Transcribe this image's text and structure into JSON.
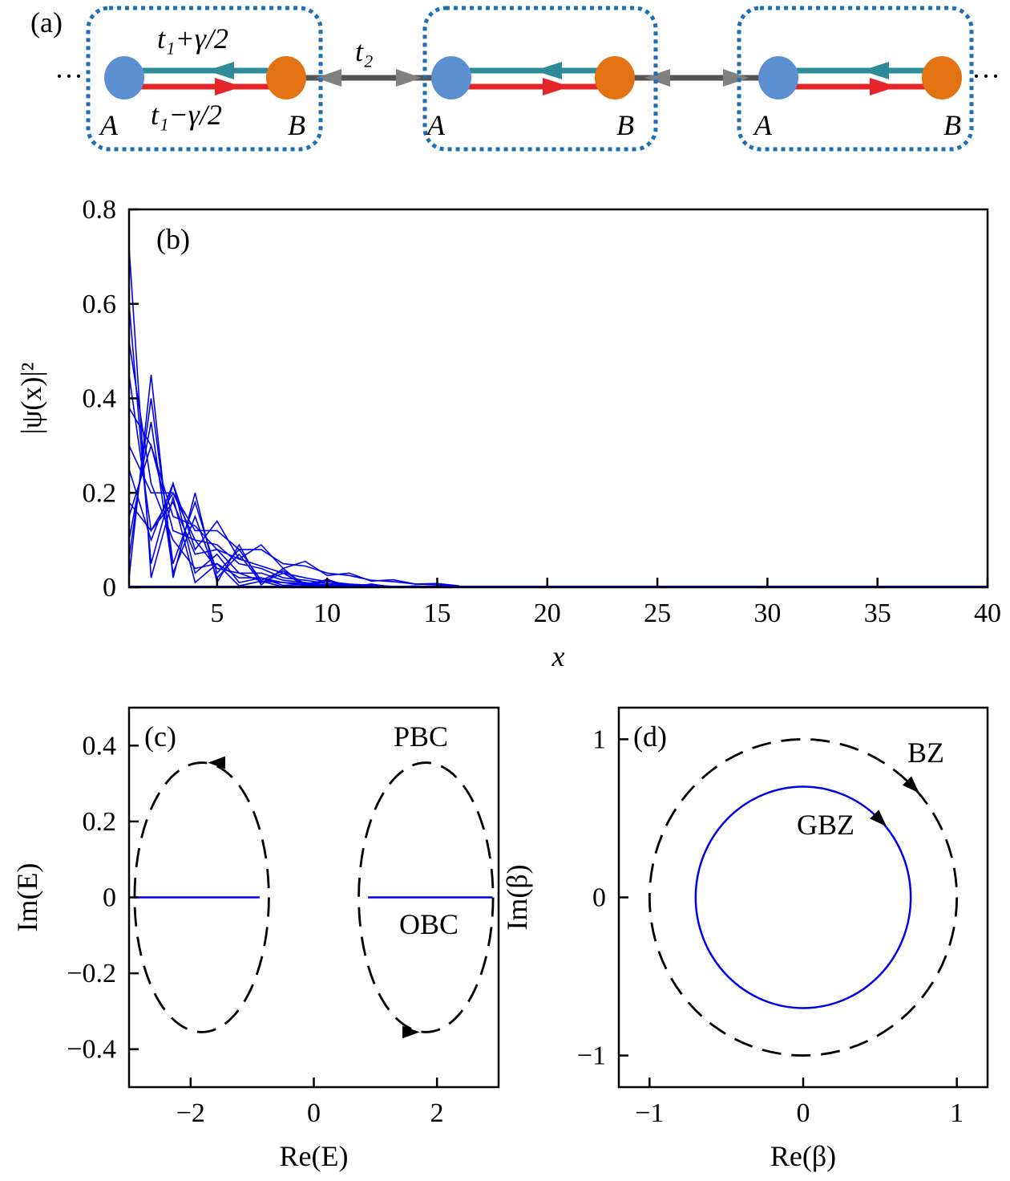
{
  "panel_a": {
    "label": "(a)",
    "hop_intra_left": "t₁+γ/2",
    "hop_intra_right": "t₁−γ/2",
    "hop_inter": "t₂",
    "site_a": "A",
    "site_b": "B",
    "ellipsis": "···",
    "colors": {
      "site_a": "#5b8fd0",
      "site_b": "#e27212",
      "hop_left": "#2e8b9a",
      "hop_right": "#e4262a",
      "hop_inter": "#555555",
      "inter_arrow": "#808080",
      "cell_box": "#1f6fb4"
    }
  },
  "chart_data": [
    {
      "type": "line",
      "panel_label": "(b)",
      "xlabel": "x",
      "ylabel": "|ψ(x)|²",
      "xlim": [
        1,
        40
      ],
      "ylim": [
        0,
        0.8
      ],
      "xticks": [
        5,
        10,
        15,
        20,
        25,
        30,
        35,
        40
      ],
      "xtick_labels": [
        "5",
        "10",
        "15",
        "20",
        "25",
        "30",
        "35",
        "40"
      ],
      "yticks": [
        0,
        0.2,
        0.4,
        0.6,
        0.8
      ],
      "ytick_labels": [
        "0",
        "0.2",
        "0.4",
        "0.6",
        "0.8"
      ],
      "color": "#0000ee",
      "x": [
        1,
        2,
        3,
        4,
        5,
        6,
        7,
        8,
        9,
        10,
        11,
        12,
        13,
        14,
        15,
        16
      ],
      "series": [
        {
          "values": [
            0.72,
            0.02,
            0.19,
            0.01,
            0.05,
            0.003,
            0.013,
            0.001,
            0.003,
            0,
            0.001,
            0,
            0,
            0,
            0,
            0
          ]
        },
        {
          "values": [
            0.6,
            0.05,
            0.22,
            0.03,
            0.07,
            0.01,
            0.02,
            0.004,
            0.006,
            0.001,
            0.002,
            0,
            0,
            0,
            0,
            0
          ]
        },
        {
          "values": [
            0.52,
            0.22,
            0.1,
            0.04,
            0.05,
            0.02,
            0.02,
            0.01,
            0.008,
            0.004,
            0.003,
            0.001,
            0,
            0,
            0,
            0
          ]
        },
        {
          "values": [
            0.45,
            0.12,
            0.18,
            0.07,
            0.08,
            0.03,
            0.03,
            0.015,
            0.01,
            0.005,
            0.003,
            0.001,
            0,
            0,
            0,
            0
          ]
        },
        {
          "values": [
            0.38,
            0.3,
            0.12,
            0.1,
            0.04,
            0.03,
            0.013,
            0.01,
            0.004,
            0.003,
            0.001,
            0.001,
            0,
            0,
            0,
            0
          ]
        },
        {
          "values": [
            0.3,
            0.2,
            0.2,
            0.1,
            0.09,
            0.05,
            0.04,
            0.02,
            0.015,
            0.008,
            0.005,
            0.002,
            0.001,
            0,
            0,
            0
          ]
        },
        {
          "values": [
            0.25,
            0.1,
            0.22,
            0.08,
            0.14,
            0.06,
            0.09,
            0.04,
            0.055,
            0.025,
            0.03,
            0.013,
            0.016,
            0.007,
            0.008,
            0.003
          ]
        },
        {
          "values": [
            0.18,
            0.12,
            0.2,
            0.12,
            0.12,
            0.08,
            0.08,
            0.05,
            0.045,
            0.03,
            0.025,
            0.015,
            0.012,
            0.007,
            0.005,
            0.003
          ]
        },
        {
          "values": [
            0.15,
            0.3,
            0.15,
            0.13,
            0.08,
            0.06,
            0.045,
            0.03,
            0.02,
            0.012,
            0.007,
            0.004,
            0.002,
            0.001,
            0,
            0
          ]
        },
        {
          "values": [
            0.1,
            0.35,
            0.03,
            0.15,
            0.02,
            0.07,
            0.01,
            0.03,
            0.004,
            0.013,
            0.002,
            0.006,
            0.001,
            0.002,
            0,
            0
          ]
        },
        {
          "values": [
            0.06,
            0.4,
            0.05,
            0.18,
            0.03,
            0.08,
            0.015,
            0.035,
            0.007,
            0.015,
            0.003,
            0.006,
            0.001,
            0.002,
            0,
            0
          ]
        },
        {
          "values": [
            0.02,
            0.45,
            0.02,
            0.2,
            0.01,
            0.09,
            0.005,
            0.04,
            0.002,
            0.017,
            0.001,
            0.007,
            0,
            0.003,
            0,
            0.001
          ]
        }
      ]
    },
    {
      "type": "line",
      "panel_label": "(c)",
      "xlabel": "Re(E)",
      "ylabel": "Im(E)",
      "xlim": [
        -3,
        3
      ],
      "ylim": [
        -0.5,
        0.5
      ],
      "xticks": [
        -2,
        0,
        2
      ],
      "xtick_labels": [
        "−2",
        "0",
        "2"
      ],
      "yticks": [
        -0.4,
        -0.2,
        0,
        0.2,
        0.4
      ],
      "ytick_labels": [
        "−0.4",
        "−0.2",
        "0",
        "0.2",
        "0.4"
      ],
      "pbc": {
        "label": "PBC",
        "color": "#000000",
        "style": "dashed",
        "loops": [
          {
            "center": [
              -1.82,
              0
            ],
            "semi_axes": [
              1.09,
              0.355
            ]
          },
          {
            "center": [
              1.82,
              0
            ],
            "semi_axes": [
              1.09,
              0.355
            ]
          }
        ],
        "arrows": [
          {
            "at": [
              -1.55,
              0.355
            ],
            "direction": "left"
          },
          {
            "at": [
              1.55,
              -0.355
            ],
            "direction": "right"
          }
        ]
      },
      "obc": {
        "label": "OBC",
        "color": "#0000ee",
        "segments": [
          [
            -2.95,
            -0.88
          ],
          [
            0.88,
            2.9
          ]
        ],
        "im": 0
      }
    },
    {
      "type": "line",
      "panel_label": "(d)",
      "xlabel": "Re(β)",
      "ylabel": "Im(β)",
      "xlim": [
        -1.2,
        1.2
      ],
      "ylim": [
        -1.2,
        1.2
      ],
      "xticks": [
        -1,
        0,
        1
      ],
      "xtick_labels": [
        "−1",
        "0",
        "1"
      ],
      "yticks": [
        -1,
        0,
        1
      ],
      "ytick_labels": [
        "−1",
        "0",
        "1"
      ],
      "bz": {
        "label": "BZ",
        "radius": 1.0,
        "color": "#000000",
        "style": "dashed",
        "arrow_angle_deg": 45,
        "direction": "clockwise"
      },
      "gbz": {
        "label": "GBZ",
        "radius": 0.7,
        "color": "#0000ee",
        "style": "solid",
        "arrow_angle_deg": 45,
        "direction": "clockwise"
      }
    }
  ]
}
